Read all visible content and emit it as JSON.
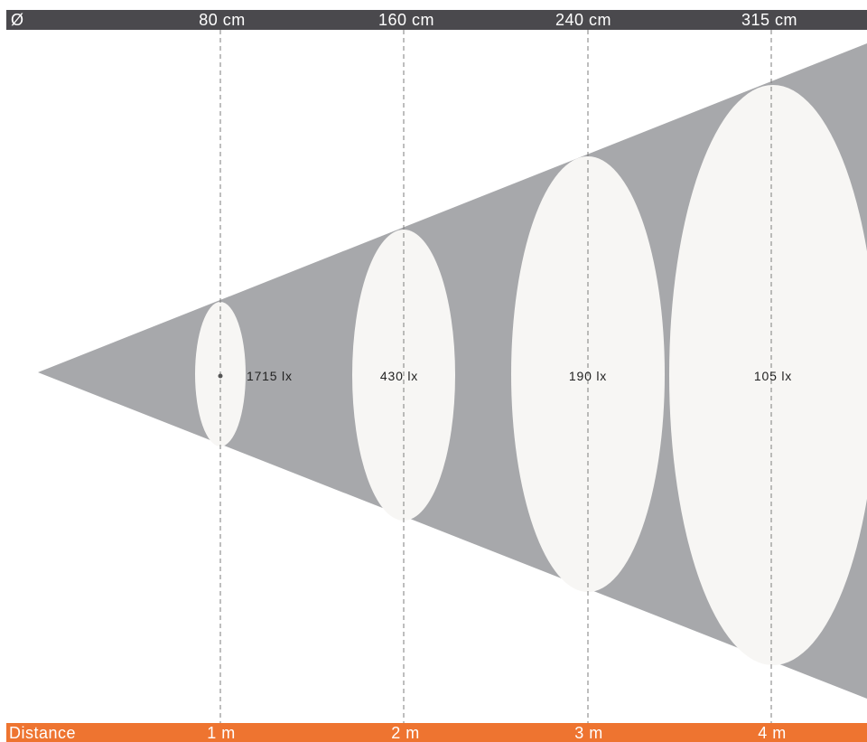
{
  "diameter_header": {
    "symbol": "Ø",
    "values": [
      "80 cm",
      "160 cm",
      "240 cm",
      "315 cm"
    ]
  },
  "distance_footer": {
    "label": "Distance",
    "values": [
      "1 m",
      "2 m",
      "3 m",
      "4 m"
    ]
  },
  "beam": {
    "illuminance": [
      "1715 lx",
      "430 lx",
      "190 lx",
      "105 lx"
    ]
  },
  "colors": {
    "header_bar": "#4a494d",
    "footer_bar": "#ee7430",
    "beam_cone": "#a7a8ab",
    "light_spot": "#f7f6f4",
    "guide_line": "#7d7d7d"
  }
}
